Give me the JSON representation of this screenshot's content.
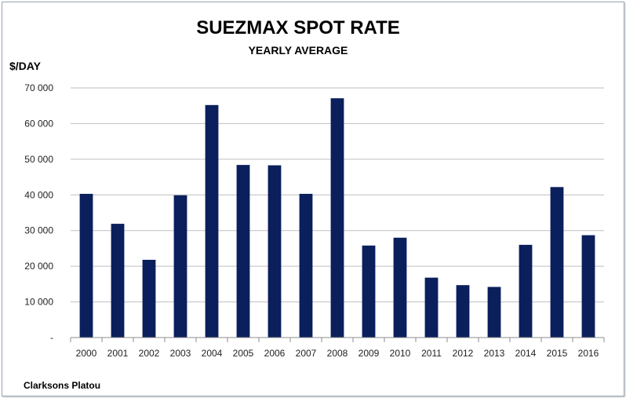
{
  "chart_data": {
    "type": "bar",
    "title": "SUEZMAX SPOT RATE",
    "subtitle": "YEARLY AVERAGE",
    "ylabel": "$/DAY",
    "xlabel": "",
    "source": "Clarksons Platou",
    "categories": [
      "2000",
      "2001",
      "2002",
      "2003",
      "2004",
      "2005",
      "2006",
      "2007",
      "2008",
      "2009",
      "2010",
      "2011",
      "2012",
      "2013",
      "2014",
      "2015",
      "2016"
    ],
    "values": [
      40300,
      31900,
      21800,
      39900,
      65200,
      48400,
      48300,
      40300,
      67100,
      25800,
      28000,
      16800,
      14700,
      14200,
      26000,
      42200,
      28700
    ],
    "ylim": [
      0,
      70000
    ],
    "yticks": [
      0,
      10000,
      20000,
      30000,
      40000,
      50000,
      60000,
      70000
    ],
    "ytick_labels": [
      "-",
      "10 000",
      "20 000",
      "30 000",
      "40 000",
      "50 000",
      "60 000",
      "70 000"
    ],
    "grid": true,
    "legend": "none",
    "bar_color": "#0a1f5c",
    "grid_color": "#bfbfbf",
    "axis_color": "#8c8c8c"
  }
}
